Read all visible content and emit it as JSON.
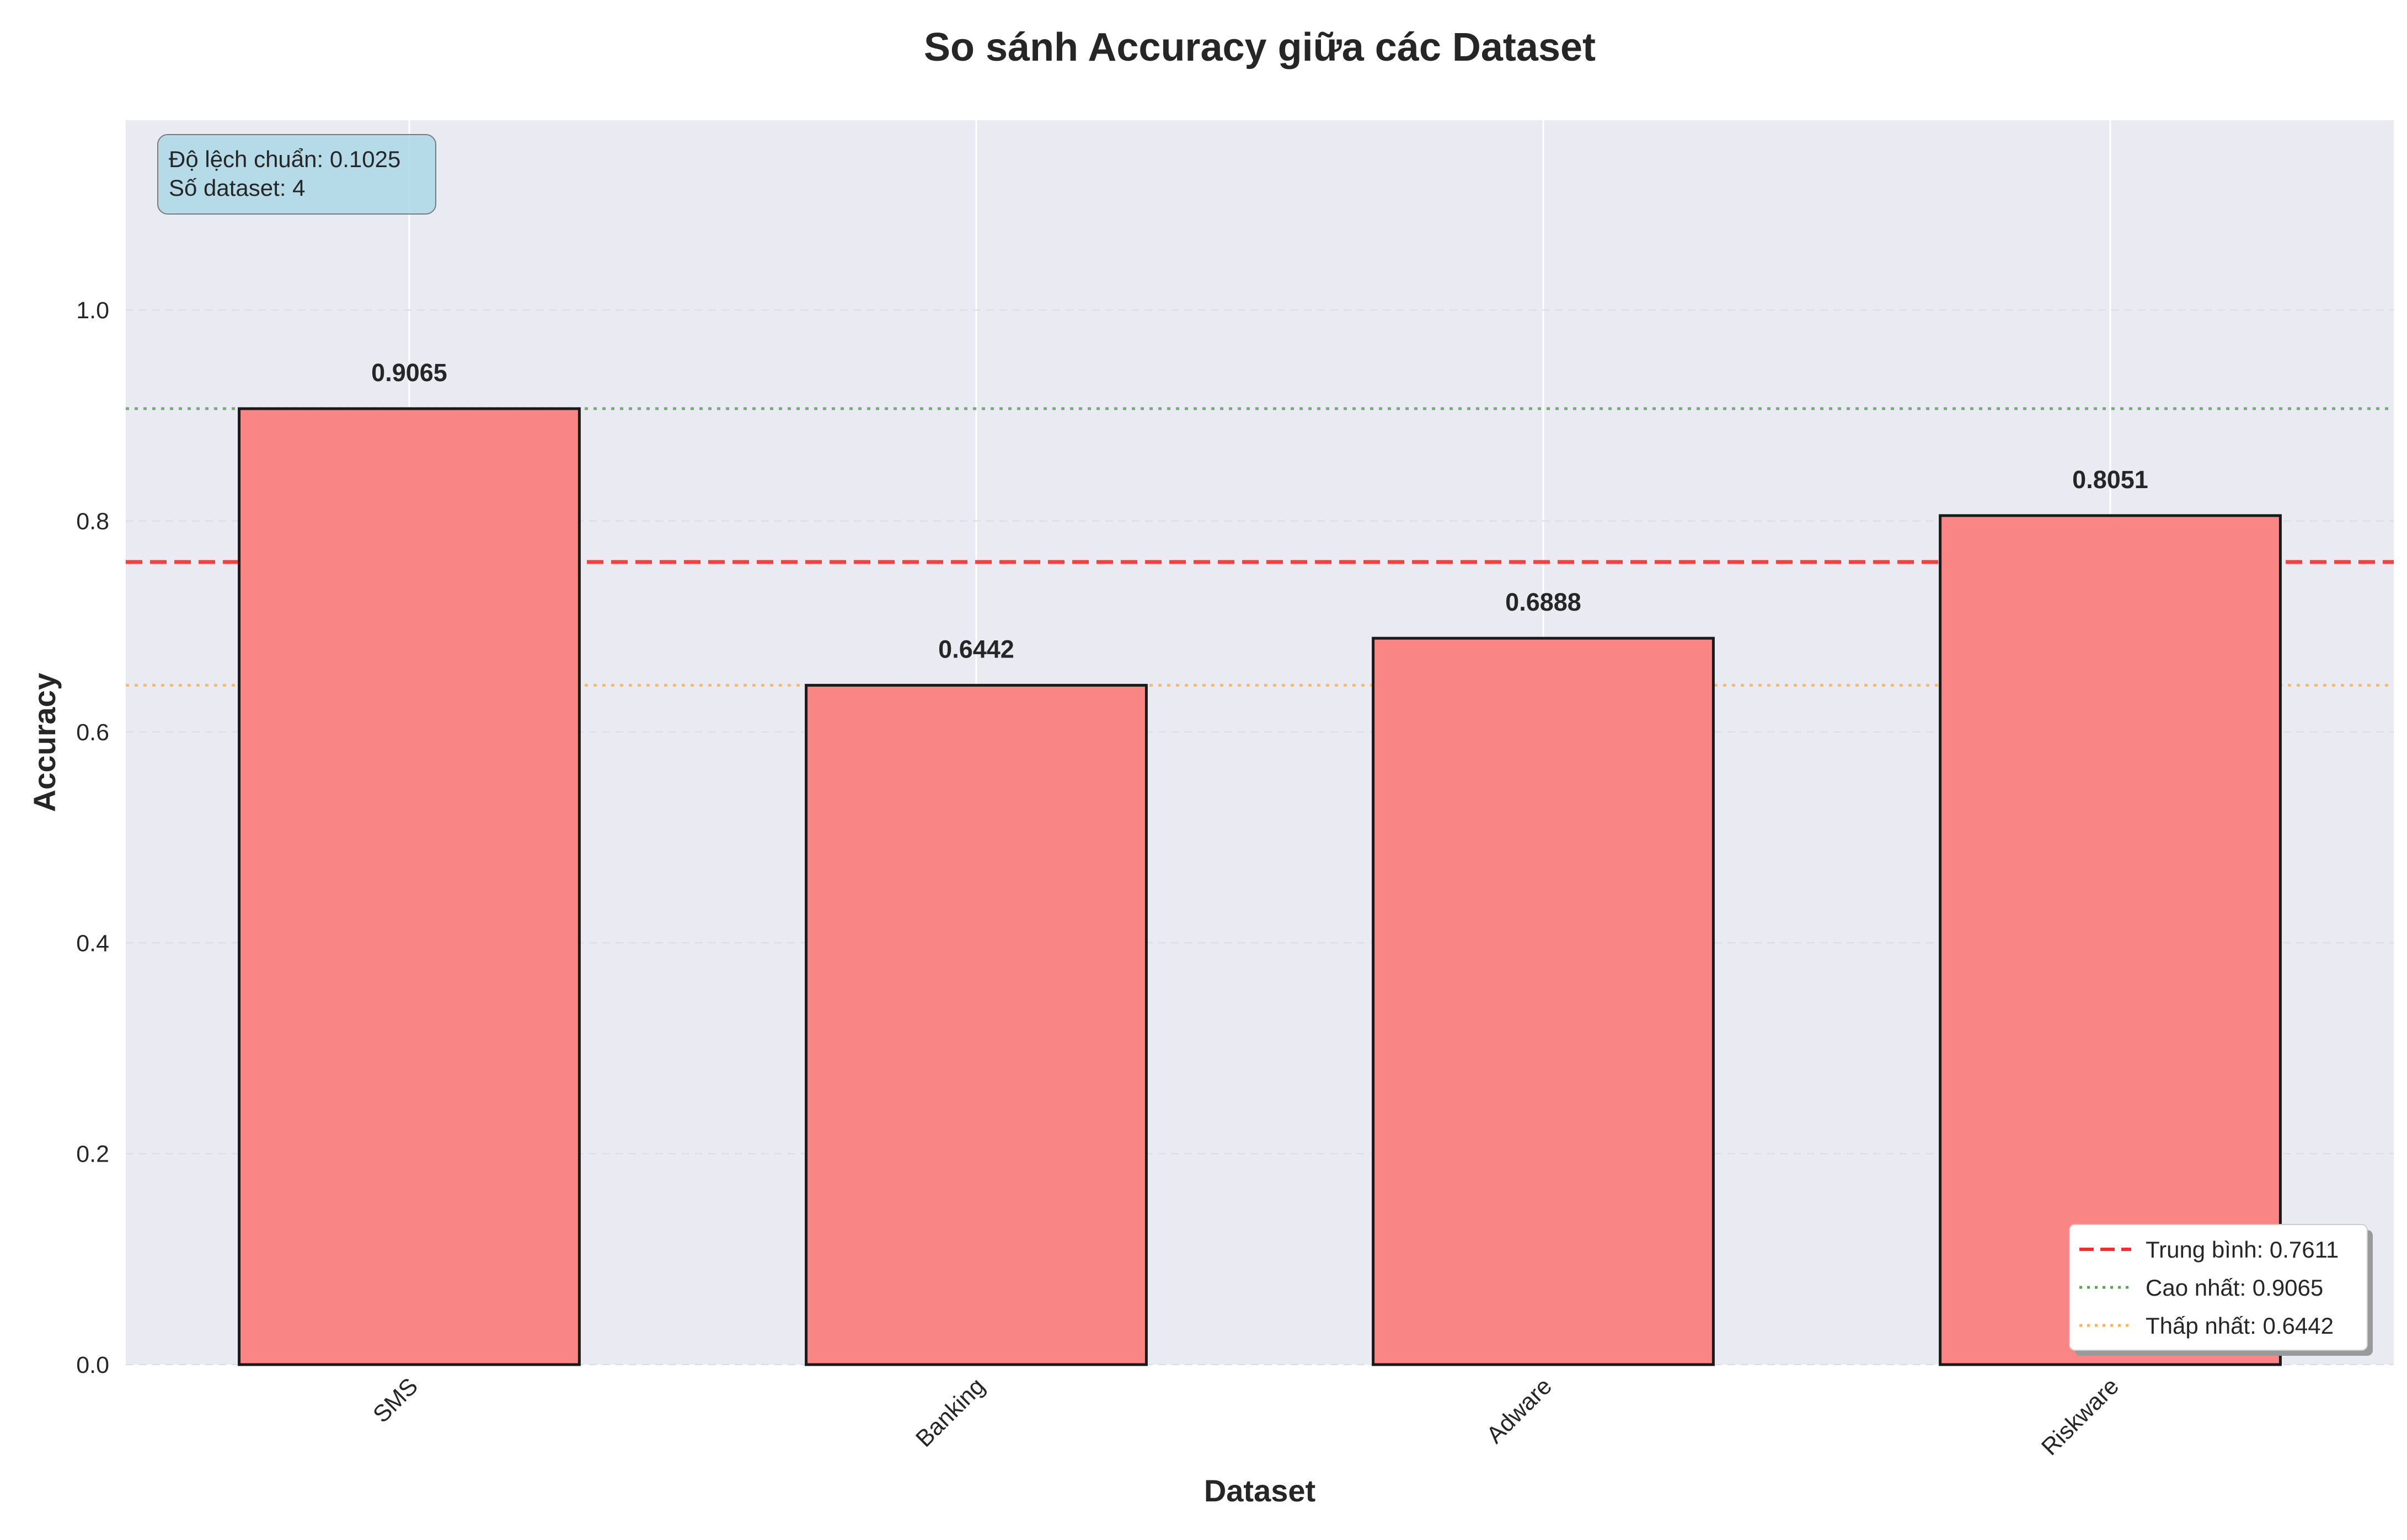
{
  "chart_data": {
    "type": "bar",
    "title": "So sánh Accuracy giữa các Dataset",
    "xlabel": "Dataset",
    "ylabel": "Accuracy",
    "categories": [
      "SMS",
      "Banking",
      "Adware",
      "Riskware"
    ],
    "values": [
      0.9065,
      0.6442,
      0.6888,
      0.8051
    ],
    "value_labels": [
      "0.9065",
      "0.6442",
      "0.6888",
      "0.8051"
    ],
    "ylim": [
      0,
      1.18
    ],
    "yticks": [
      0.0,
      0.2,
      0.4,
      0.6,
      0.8,
      1.0
    ],
    "ytick_labels": [
      "0.0",
      "0.2",
      "0.4",
      "0.6",
      "0.8",
      "1.0"
    ],
    "grid": true,
    "bar_color": "#fa8585",
    "reference_lines": [
      {
        "label": "Trung bình: 0.7611",
        "value": 0.7611,
        "style": "dashed",
        "color": "#ff2a2a"
      },
      {
        "label": "Cao nhất: 0.9065",
        "value": 0.9065,
        "style": "dotted",
        "color": "#5aa35a"
      },
      {
        "label": "Thấp nhất: 0.6442",
        "value": 0.6442,
        "style": "dotted",
        "color": "#f2b560"
      }
    ],
    "legend_position": "bottom-right",
    "stats_box": {
      "lines": [
        "Độ lệch chuẩn: 0.1025",
        "Số dataset: 4"
      ],
      "position": "top-left",
      "color": "#add8e6"
    }
  }
}
